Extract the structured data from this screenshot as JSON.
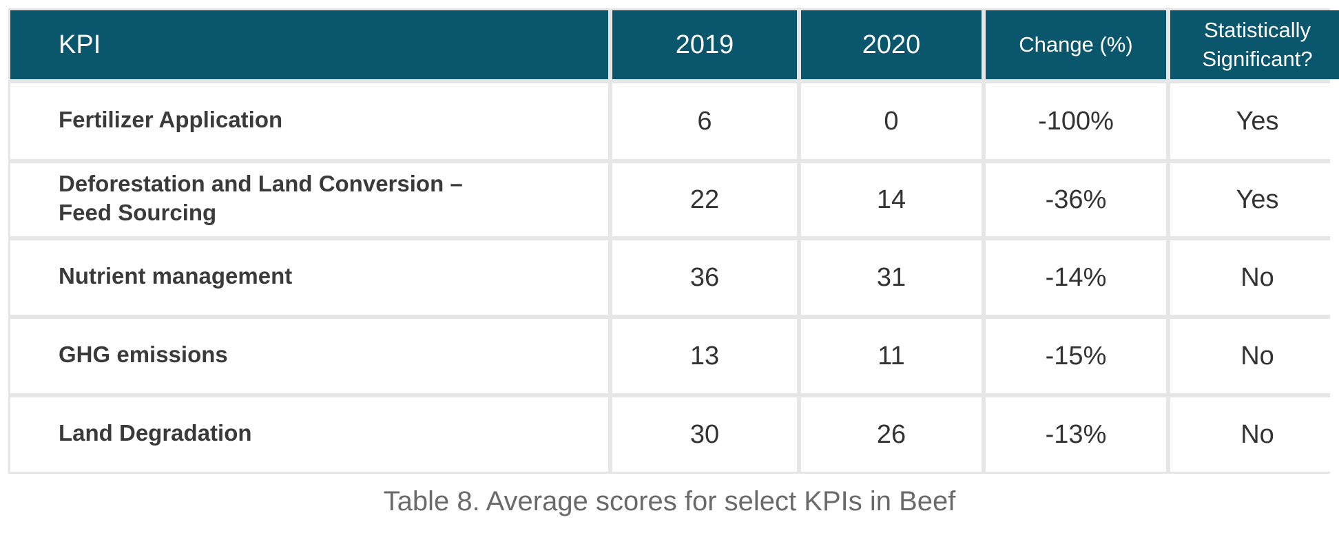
{
  "table": {
    "headers": {
      "kpi": "KPI",
      "y2019": "2019",
      "y2020": "2020",
      "change": "Change (%)",
      "significant_line1": "Statistically",
      "significant_line2": "Significant?"
    },
    "rows": [
      {
        "kpi": "Fertilizer Application",
        "y2019": "6",
        "y2020": "0",
        "change": "-100%",
        "significant": "Yes"
      },
      {
        "kpi_line1": "Deforestation and Land Conversion –",
        "kpi_line2": "Feed Sourcing",
        "y2019": "22",
        "y2020": "14",
        "change": "-36%",
        "significant": "Yes"
      },
      {
        "kpi": "Nutrient management",
        "y2019": "36",
        "y2020": "31",
        "change": "-14%",
        "significant": "No"
      },
      {
        "kpi": "GHG emissions",
        "y2019": "13",
        "y2020": "11",
        "change": "-15%",
        "significant": "No"
      },
      {
        "kpi": "Land Degradation",
        "y2019": "30",
        "y2020": "26",
        "change": "-13%",
        "significant": "No"
      }
    ]
  },
  "caption": "Table 8. Average scores for select KPIs in Beef",
  "colors": {
    "header_bg": "#0a566d",
    "header_text": "#ffffff",
    "grid": "#e6e6e6",
    "body_text": "#333333"
  }
}
